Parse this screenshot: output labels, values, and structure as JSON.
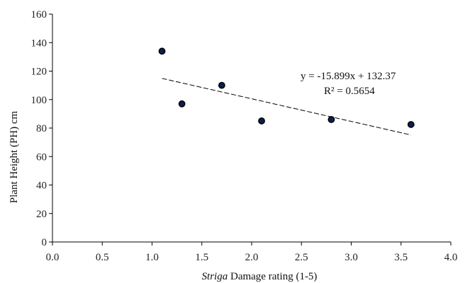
{
  "chart_data": {
    "type": "scatter",
    "title": "",
    "xlabel": "",
    "xlabel_italic": "Striga",
    "xlabel_rest": " Damage rating (1-5)",
    "ylabel": "Plant Height (PH) cm",
    "xlim": [
      0,
      4
    ],
    "ylim": [
      0,
      160
    ],
    "xticks": [
      "0.0",
      "0.5",
      "1.0",
      "1.5",
      "2.0",
      "2.5",
      "3.0",
      "3.5",
      "4.0"
    ],
    "yticks": [
      "0",
      "20",
      "40",
      "60",
      "80",
      "100",
      "120",
      "140",
      "160"
    ],
    "grid": false,
    "legend": "none",
    "series": [
      {
        "x": [
          1.1,
          1.3,
          1.7,
          2.1,
          2.8,
          3.6
        ],
        "y": [
          134,
          97,
          110,
          85,
          86,
          82.5
        ]
      }
    ],
    "trendline": {
      "style": "dashed",
      "slope": -15.899,
      "intercept": 132.37,
      "x_range": [
        1.1,
        3.6
      ],
      "equation": "y = -15.899x + 132.37",
      "r2": "R² = 0.5654"
    },
    "colors": {
      "marker_fill": "#0b1f4d",
      "marker_edge": "#000000",
      "axis": "#000000",
      "trend": "#000000"
    }
  }
}
